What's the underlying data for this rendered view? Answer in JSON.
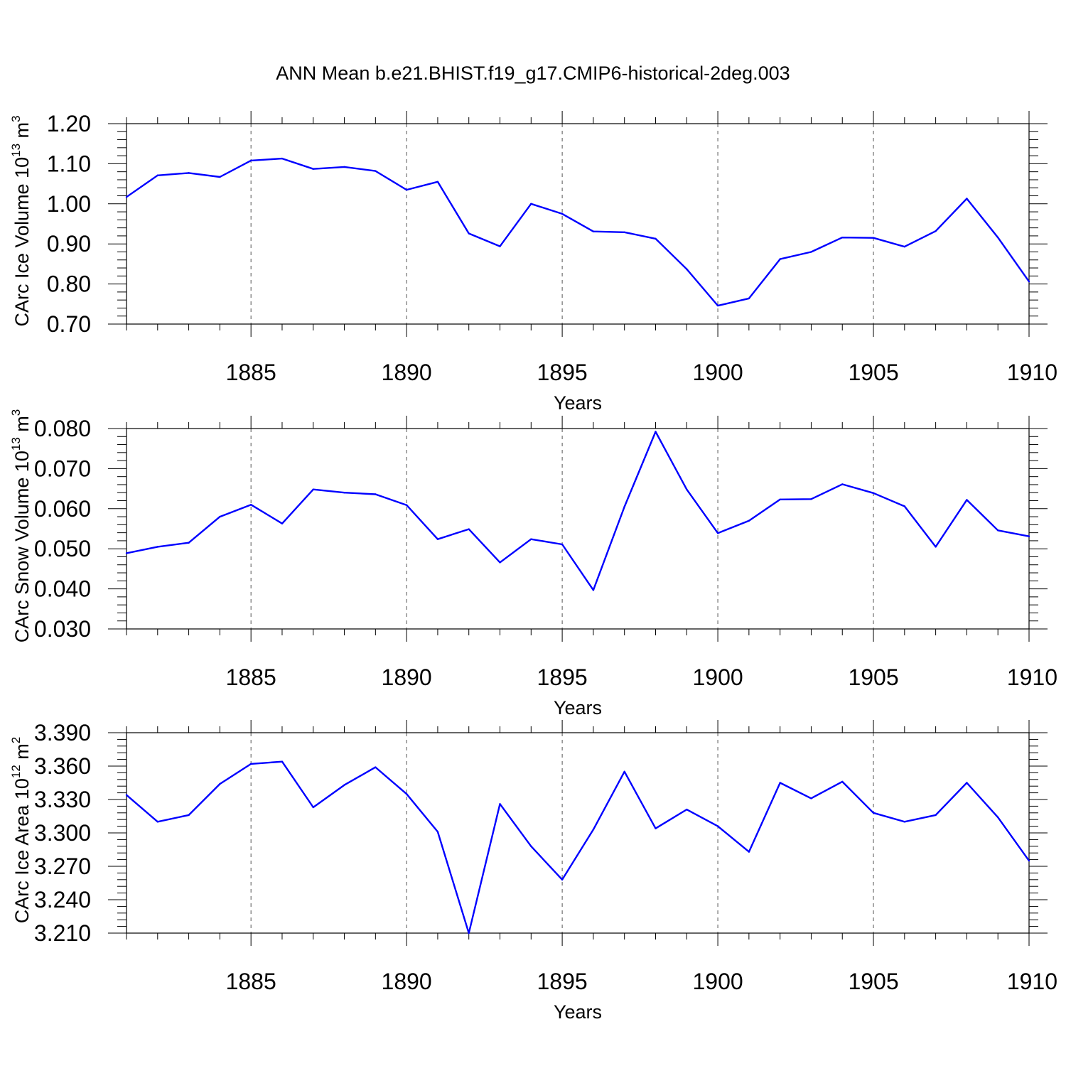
{
  "figure": {
    "title": "ANN Mean b.e21.BHIST.f19_g17.CMIP6-historical-2deg.003"
  },
  "colors": {
    "series": "#0000ff",
    "grid": "#555555",
    "axes": "#000000"
  },
  "chart_data": [
    {
      "type": "line",
      "id": "ice-volume",
      "title": "",
      "xlabel": "Years",
      "ylabel": {
        "main": "CArc Ice Volume 10",
        "sup": "13",
        "unit": " m",
        "unit_sup": "3"
      },
      "xlim": [
        1881,
        1910
      ],
      "ylim": [
        0.7,
        1.2
      ],
      "x_ticks": [
        1885,
        1890,
        1895,
        1900,
        1905,
        1910
      ],
      "x_tick_labels": [
        "1885",
        "1890",
        "1895",
        "1900",
        "1905",
        "1910"
      ],
      "y_ticks": [
        0.7,
        0.8,
        0.9,
        1.0,
        1.1,
        1.2
      ],
      "y_tick_labels": [
        "0.70",
        "0.80",
        "0.90",
        "1.00",
        "1.10",
        "1.20"
      ],
      "grid": "dashed vertical at major x ticks",
      "x": [
        1881,
        1882,
        1883,
        1884,
        1885,
        1886,
        1887,
        1888,
        1889,
        1890,
        1891,
        1892,
        1893,
        1894,
        1895,
        1896,
        1897,
        1898,
        1899,
        1900,
        1901,
        1902,
        1903,
        1904,
        1905,
        1906,
        1907,
        1908,
        1909,
        1910
      ],
      "values": [
        1.017,
        1.071,
        1.077,
        1.067,
        1.108,
        1.113,
        1.087,
        1.092,
        1.082,
        1.035,
        1.055,
        0.926,
        0.894,
        1.0,
        0.975,
        0.931,
        0.929,
        0.913,
        0.837,
        0.746,
        0.764,
        0.862,
        0.88,
        0.916,
        0.915,
        0.893,
        0.932,
        1.013,
        0.916,
        0.806
      ]
    },
    {
      "type": "line",
      "id": "snow-volume",
      "title": "",
      "xlabel": "Years",
      "ylabel": {
        "main": "CArc Snow Volume 10",
        "sup": "13",
        "unit": " m",
        "unit_sup": "3"
      },
      "xlim": [
        1881,
        1910
      ],
      "ylim": [
        0.03,
        0.08
      ],
      "x_ticks": [
        1885,
        1890,
        1895,
        1900,
        1905,
        1910
      ],
      "x_tick_labels": [
        "1885",
        "1890",
        "1895",
        "1900",
        "1905",
        "1910"
      ],
      "y_ticks": [
        0.03,
        0.04,
        0.05,
        0.06,
        0.07,
        0.08
      ],
      "y_tick_labels": [
        "0.030",
        "0.040",
        "0.050",
        "0.060",
        "0.070",
        "0.080"
      ],
      "grid": "dashed vertical at major x ticks",
      "x": [
        1881,
        1882,
        1883,
        1884,
        1885,
        1886,
        1887,
        1888,
        1889,
        1890,
        1891,
        1892,
        1893,
        1894,
        1895,
        1896,
        1897,
        1898,
        1899,
        1900,
        1901,
        1902,
        1903,
        1904,
        1905,
        1906,
        1907,
        1908,
        1909,
        1910
      ],
      "values": [
        0.0489,
        0.0505,
        0.0515,
        0.058,
        0.061,
        0.0563,
        0.0648,
        0.064,
        0.0636,
        0.0609,
        0.0524,
        0.0549,
        0.0466,
        0.0524,
        0.0511,
        0.0397,
        0.0605,
        0.0792,
        0.0648,
        0.0539,
        0.057,
        0.0623,
        0.0624,
        0.0661,
        0.0639,
        0.0606,
        0.0505,
        0.0622,
        0.0546,
        0.0531
      ]
    },
    {
      "type": "line",
      "id": "ice-area",
      "title": "",
      "xlabel": "Years",
      "ylabel": {
        "main": "CArc Ice Area 10",
        "sup": "12",
        "unit": " m",
        "unit_sup": "2"
      },
      "xlim": [
        1881,
        1910
      ],
      "ylim": [
        3.21,
        3.39
      ],
      "x_ticks": [
        1885,
        1890,
        1895,
        1900,
        1905,
        1910
      ],
      "x_tick_labels": [
        "1885",
        "1890",
        "1895",
        "1900",
        "1905",
        "1910"
      ],
      "y_ticks": [
        3.21,
        3.24,
        3.27,
        3.3,
        3.33,
        3.36,
        3.39
      ],
      "y_tick_labels": [
        "3.210",
        "3.240",
        "3.270",
        "3.300",
        "3.330",
        "3.360",
        "3.390"
      ],
      "grid": "dashed vertical at major x ticks",
      "x": [
        1881,
        1882,
        1883,
        1884,
        1885,
        1886,
        1887,
        1888,
        1889,
        1890,
        1891,
        1892,
        1893,
        1894,
        1895,
        1896,
        1897,
        1898,
        1899,
        1900,
        1901,
        1902,
        1903,
        1904,
        1905,
        1906,
        1907,
        1908,
        1909,
        1910
      ],
      "values": [
        3.334,
        3.31,
        3.316,
        3.344,
        3.362,
        3.364,
        3.323,
        3.343,
        3.359,
        3.335,
        3.301,
        3.21,
        3.326,
        3.288,
        3.258,
        3.303,
        3.355,
        3.304,
        3.321,
        3.306,
        3.283,
        3.345,
        3.331,
        3.346,
        3.318,
        3.31,
        3.316,
        3.345,
        3.314,
        3.275
      ]
    }
  ]
}
